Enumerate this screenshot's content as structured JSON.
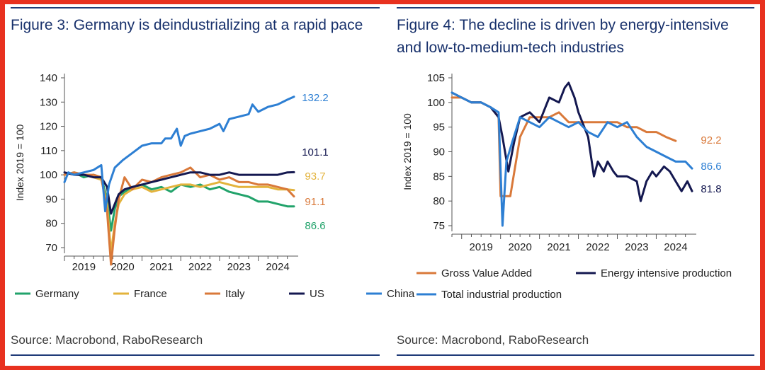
{
  "left": {
    "title": "Figure 3: Germany is deindustrializing at a rapid pace",
    "source": "Source: Macrobond, RaboResearch"
  },
  "right": {
    "title": "Figure 4: The decline is driven by energy-intensive and low-to-medium-tech industries",
    "source": "Source: Macrobond, RaboResearch"
  },
  "colors": {
    "border": "#e8311f",
    "rule": "#1f3b78",
    "title": "#17306b"
  },
  "chart_data": [
    {
      "type": "line",
      "title": "Figure 3: Germany is deindustrializing at a rapid pace",
      "xlabel": "",
      "ylabel": "Index 2019 = 100",
      "ylim": [
        70,
        140
      ],
      "yticks": [
        70,
        80,
        90,
        100,
        110,
        120,
        130,
        140
      ],
      "xlim": [
        2019.0,
        2024.92
      ],
      "xticks": [
        "2019",
        "2020",
        "2021",
        "2022",
        "2023",
        "2024"
      ],
      "legend_position": "bottom",
      "series": [
        {
          "name": "Germany",
          "color": "#22a36b",
          "end_label": "86.6",
          "x": [
            2019.0,
            2019.25,
            2019.5,
            2019.75,
            2019.95,
            2020.1,
            2020.2,
            2020.3,
            2020.4,
            2020.55,
            2020.75,
            2021.0,
            2021.25,
            2021.5,
            2021.75,
            2022.0,
            2022.25,
            2022.5,
            2022.75,
            2023.0,
            2023.25,
            2023.5,
            2023.75,
            2024.0,
            2024.25,
            2024.5,
            2024.75,
            2024.92
          ],
          "y": [
            100,
            101,
            99,
            100,
            99,
            90,
            77,
            86,
            91,
            93,
            95,
            96,
            94,
            95,
            93,
            96,
            95,
            96,
            94,
            95,
            93,
            92,
            91,
            89,
            89,
            88,
            87,
            87
          ]
        },
        {
          "name": "France",
          "color": "#e3b33c",
          "end_label": "93.7",
          "x": [
            2019.0,
            2019.25,
            2019.5,
            2019.75,
            2019.95,
            2020.1,
            2020.2,
            2020.3,
            2020.4,
            2020.55,
            2020.75,
            2021.0,
            2021.25,
            2021.5,
            2021.75,
            2022.0,
            2022.25,
            2022.5,
            2022.75,
            2023.0,
            2023.25,
            2023.5,
            2023.75,
            2024.0,
            2024.25,
            2024.5,
            2024.75,
            2024.92
          ],
          "y": [
            100,
            101,
            100,
            99,
            98,
            88,
            68,
            80,
            88,
            92,
            94,
            95,
            93,
            94,
            95,
            96,
            96,
            95,
            96,
            97,
            96,
            95,
            95,
            95,
            95,
            94,
            94,
            93.7
          ]
        },
        {
          "name": "Italy",
          "color": "#d9793a",
          "end_label": "91.1",
          "x": [
            2019.0,
            2019.25,
            2019.5,
            2019.75,
            2019.95,
            2020.1,
            2020.2,
            2020.3,
            2020.4,
            2020.55,
            2020.75,
            2021.0,
            2021.25,
            2021.5,
            2021.75,
            2022.0,
            2022.25,
            2022.5,
            2022.75,
            2023.0,
            2023.25,
            2023.5,
            2023.75,
            2024.0,
            2024.25,
            2024.5,
            2024.75,
            2024.92
          ],
          "y": [
            100,
            101,
            100,
            100,
            99,
            85,
            63,
            78,
            90,
            99,
            94,
            98,
            97,
            99,
            100,
            101,
            103,
            99,
            100,
            98,
            99,
            97,
            97,
            96,
            96,
            95,
            94,
            91.1
          ]
        },
        {
          "name": "US",
          "color": "#141850",
          "end_label": "101.1",
          "x": [
            2019.0,
            2019.25,
            2019.5,
            2019.75,
            2019.95,
            2020.1,
            2020.2,
            2020.3,
            2020.4,
            2020.55,
            2020.75,
            2021.0,
            2021.25,
            2021.5,
            2021.75,
            2022.0,
            2022.25,
            2022.5,
            2022.75,
            2023.0,
            2023.25,
            2023.5,
            2023.75,
            2024.0,
            2024.25,
            2024.5,
            2024.75,
            2024.92
          ],
          "y": [
            101,
            100,
            100,
            99,
            99,
            95,
            84,
            88,
            92,
            94,
            95,
            96,
            97,
            98,
            99,
            100,
            101,
            101,
            100,
            100,
            101,
            100,
            100,
            100,
            100,
            100,
            101,
            101.1
          ]
        },
        {
          "name": "China",
          "color": "#2d7fd3",
          "end_label": "132.2",
          "x": [
            2019.0,
            2019.1,
            2019.25,
            2019.5,
            2019.75,
            2019.95,
            2020.05,
            2020.15,
            2020.3,
            2020.5,
            2020.75,
            2021.0,
            2021.25,
            2021.5,
            2021.6,
            2021.75,
            2021.9,
            2022.0,
            2022.1,
            2022.25,
            2022.5,
            2022.75,
            2023.0,
            2023.1,
            2023.25,
            2023.5,
            2023.75,
            2023.85,
            2024.0,
            2024.25,
            2024.5,
            2024.75,
            2024.92
          ],
          "y": [
            97,
            101,
            100,
            101,
            102,
            104,
            85,
            96,
            103,
            106,
            109,
            112,
            113,
            113,
            115,
            115,
            119,
            112,
            116,
            117,
            118,
            119,
            121,
            118,
            123,
            124,
            125,
            129,
            126,
            128,
            129,
            131,
            132.2
          ]
        }
      ]
    },
    {
      "type": "line",
      "title": "Figure 4: The decline is driven by energy-intensive and low-to-medium-tech industries",
      "xlabel": "",
      "ylabel": "Index 2019 = 100",
      "ylim": [
        75,
        105
      ],
      "yticks": [
        75,
        80,
        85,
        90,
        95,
        100,
        105
      ],
      "xlim": [
        2018.75,
        2024.92
      ],
      "xticks": [
        "2019",
        "2020",
        "2021",
        "2022",
        "2023",
        "2024"
      ],
      "legend_position": "bottom",
      "series": [
        {
          "name": "Gross Value Added",
          "color": "#d9793a",
          "end_label": "92.2",
          "x": [
            2018.75,
            2019.0,
            2019.25,
            2019.5,
            2019.75,
            2019.95,
            2020.0,
            2020.25,
            2020.5,
            2020.75,
            2021.0,
            2021.25,
            2021.5,
            2021.75,
            2022.0,
            2022.25,
            2022.5,
            2022.75,
            2023.0,
            2023.25,
            2023.5,
            2023.75,
            2024.0,
            2024.25,
            2024.5
          ],
          "y": [
            101,
            101,
            100,
            100,
            99,
            97,
            81,
            81,
            93,
            97,
            97,
            97,
            98,
            96,
            96,
            96,
            96,
            96,
            96,
            95,
            95,
            94,
            94,
            93,
            92.2
          ]
        },
        {
          "name": "Energy intensive production",
          "color": "#141850",
          "end_label": "81.8",
          "x": [
            2018.75,
            2019.0,
            2019.25,
            2019.5,
            2019.75,
            2019.95,
            2020.05,
            2020.2,
            2020.35,
            2020.5,
            2020.75,
            2021.0,
            2021.25,
            2021.5,
            2021.65,
            2021.75,
            2021.9,
            2022.0,
            2022.1,
            2022.25,
            2022.4,
            2022.5,
            2022.65,
            2022.75,
            2022.9,
            2023.0,
            2023.25,
            2023.5,
            2023.6,
            2023.75,
            2023.9,
            2024.0,
            2024.2,
            2024.35,
            2024.5,
            2024.65,
            2024.8,
            2024.92
          ],
          "y": [
            102,
            101,
            100,
            100,
            99,
            97,
            93,
            86,
            92,
            97,
            98,
            96,
            101,
            100,
            103,
            104,
            101,
            98,
            96,
            93,
            85,
            88,
            86,
            88,
            86,
            85,
            85,
            84,
            80,
            84,
            86,
            85,
            87,
            86,
            84,
            82,
            84,
            82
          ]
        },
        {
          "name": "Total industrial production",
          "color": "#2d7fd3",
          "end_label": "86.6",
          "x": [
            2018.75,
            2019.0,
            2019.25,
            2019.5,
            2019.75,
            2019.95,
            2020.05,
            2020.15,
            2020.3,
            2020.5,
            2020.75,
            2021.0,
            2021.25,
            2021.5,
            2021.75,
            2022.0,
            2022.25,
            2022.5,
            2022.75,
            2023.0,
            2023.25,
            2023.5,
            2023.75,
            2024.0,
            2024.25,
            2024.5,
            2024.75,
            2024.92
          ],
          "y": [
            102,
            101,
            100,
            100,
            99,
            98,
            75,
            88,
            92,
            97,
            96,
            95,
            97,
            96,
            95,
            96,
            94,
            93,
            96,
            95,
            96,
            93,
            91,
            90,
            89,
            88,
            88,
            86.6
          ]
        }
      ]
    }
  ]
}
